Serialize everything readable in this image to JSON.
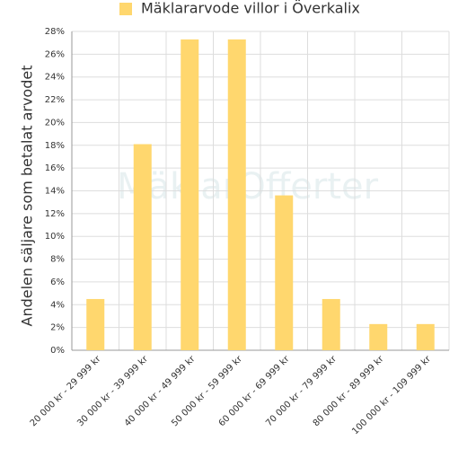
{
  "chart_data": {
    "type": "bar",
    "legend_label": "Mäklararvode villor i Överkalix",
    "y_label": "Andelen säljare som betalat arvodet",
    "watermark": "MäklarOfferter",
    "categories": [
      "20 000 kr - 29 999 kr",
      "30 000 kr - 39 999 kr",
      "40 000 kr - 49 999 kr",
      "50 000 kr - 59 999 kr",
      "60 000 kr - 69 999 kr",
      "70 000 kr - 79 999 kr",
      "80 000 kr - 89 999 kr",
      "100 000 kr - 109 999 kr"
    ],
    "values": [
      4.5,
      18.1,
      27.3,
      27.3,
      13.6,
      4.5,
      2.3,
      2.3
    ],
    "color": "#ffd76e",
    "ylim": [
      0,
      28
    ],
    "yticks": [
      {
        "value": 0,
        "label": "0%"
      },
      {
        "value": 2,
        "label": "2%"
      },
      {
        "value": 4,
        "label": "4%"
      },
      {
        "value": 6,
        "label": "6%"
      },
      {
        "value": 8,
        "label": "8%"
      },
      {
        "value": 10,
        "label": "10%"
      },
      {
        "value": 12,
        "label": "12%"
      },
      {
        "value": 14,
        "label": "14%"
      },
      {
        "value": 16,
        "label": "16%"
      },
      {
        "value": 18,
        "label": "18%"
      },
      {
        "value": 20,
        "label": "20%"
      },
      {
        "value": 22,
        "label": "22%"
      },
      {
        "value": 24,
        "label": "24%"
      },
      {
        "value": 26,
        "label": "26%"
      },
      {
        "value": 28,
        "label": "28%"
      }
    ],
    "grid": true
  }
}
